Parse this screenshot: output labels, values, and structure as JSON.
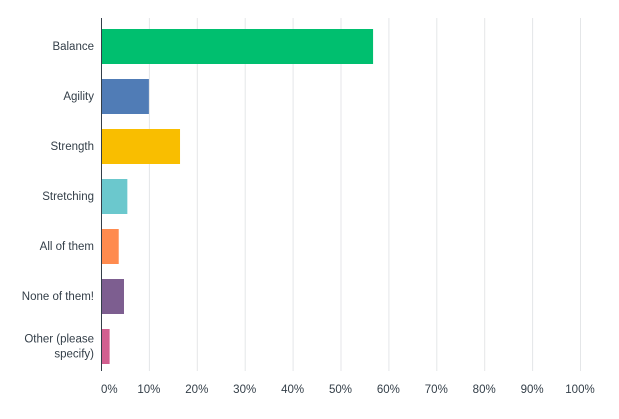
{
  "chart_data": {
    "type": "bar",
    "orientation": "horizontal",
    "categories": [
      [
        "Balance"
      ],
      [
        "Agility"
      ],
      [
        "Strength"
      ],
      [
        "Stretching"
      ],
      [
        "All of them"
      ],
      [
        "None of them!"
      ],
      [
        "Other (please",
        "specify)"
      ]
    ],
    "values": [
      56.8,
      10.0,
      16.5,
      5.5,
      3.7,
      4.8,
      1.8
    ],
    "colors": [
      "#00bf6f",
      "#507cb6",
      "#f9be00",
      "#6bc8cd",
      "#ff8b4f",
      "#7d5e90",
      "#d25f90"
    ],
    "xlim": [
      0,
      100
    ],
    "x_ticks": [
      "0%",
      "10%",
      "20%",
      "30%",
      "40%",
      "50%",
      "60%",
      "70%",
      "80%",
      "90%",
      "100%"
    ],
    "grid": "vertical",
    "title": "",
    "xlabel": "",
    "ylabel": ""
  }
}
